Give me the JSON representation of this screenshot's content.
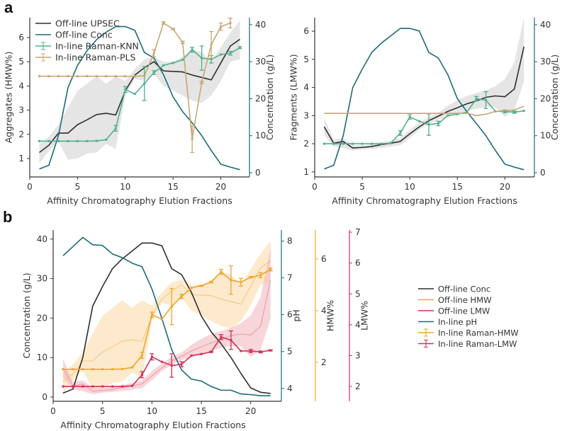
{
  "panel_labels": {
    "a": "a",
    "b": "b"
  },
  "colors": {
    "offline_black": "#2f2f2f",
    "conc_teal": "#1b6c78",
    "knn_green": "#52b08c",
    "pls_tan": "#c9a774",
    "band_gray": "#d4d4d4",
    "hmw_orange": "#f0a52a",
    "band_orange": "#fcd9a2",
    "lmw_red": "#d42f58",
    "band_red": "#f2b2ba"
  },
  "chart_data": [
    {
      "id": "a_left",
      "type": "line",
      "xlabel": "Affinity Chromatography Elution Fractions",
      "ylabel": "Aggregates (HMW%)",
      "y2label": "Concentration (g/L)",
      "xlim": [
        0,
        23
      ],
      "ylim": [
        0.24,
        6.82
      ],
      "y2lim": [
        -1.15,
        41.9
      ],
      "xticks": [
        0,
        5,
        10,
        15,
        20
      ],
      "yticks": [
        1,
        2,
        3,
        4,
        5,
        6
      ],
      "y2ticks": [
        0,
        10,
        20,
        30,
        40
      ],
      "legend": {
        "placement": "top-left",
        "entries": [
          "Off-line UPSEC",
          "Off-line Conc",
          "In-line Raman-KNN",
          "In-line Raman-PLS"
        ]
      },
      "x": [
        1,
        2,
        3,
        4,
        5,
        6,
        7,
        8,
        9,
        10,
        11,
        12,
        13,
        14,
        15,
        16,
        17,
        18,
        19,
        20,
        21,
        22
      ],
      "series": [
        {
          "name": "Off-line UPSEC",
          "axis": "y",
          "color": "offline_black",
          "values": [
            1.25,
            1.55,
            2.05,
            2.05,
            2.4,
            2.6,
            2.82,
            2.87,
            2.8,
            3.8,
            4.45,
            4.75,
            5.0,
            4.62,
            4.6,
            4.58,
            4.45,
            4.35,
            4.25,
            4.95,
            5.65,
            5.93
          ],
          "band_low": [
            0.8,
            1.3,
            1.7,
            0.95,
            1.0,
            1.2,
            1.25,
            1.6,
            1.4,
            3.6,
            4.3,
            4.2,
            4.5,
            4.0,
            3.8,
            3.6,
            3.4,
            3.3,
            3.6,
            4.2,
            5.0,
            5.1
          ],
          "band_high": [
            1.6,
            1.9,
            2.4,
            3.1,
            3.8,
            4.1,
            4.4,
            4.1,
            4.4,
            4.2,
            4.7,
            5.1,
            5.2,
            5.0,
            5.0,
            5.2,
            5.5,
            5.4,
            5.0,
            5.6,
            6.2,
            6.7
          ]
        },
        {
          "name": "Off-line Conc",
          "axis": "y2",
          "color": "conc_teal",
          "values": [
            1,
            2,
            10,
            23,
            29,
            33,
            36,
            38,
            39.5,
            39.5,
            38.5,
            32.5,
            31,
            26.5,
            20.5,
            16.5,
            13.5,
            10,
            6,
            2.3,
            1.5,
            0.8
          ]
        },
        {
          "name": "In-line Raman-KNN",
          "axis": "y",
          "color": "knn_green",
          "values": [
            1.72,
            1.72,
            1.72,
            1.72,
            1.72,
            1.72,
            1.73,
            1.78,
            2.25,
            3.85,
            3.67,
            4.1,
            4.55,
            4.85,
            4.95,
            5.08,
            5.5,
            5.15,
            5.1,
            5.3,
            5.35,
            5.58
          ],
          "errors": [
            0,
            0,
            0,
            0,
            0,
            0,
            0,
            0,
            0.12,
            0.12,
            0,
            0.7,
            0.08,
            0,
            0,
            0,
            0.1,
            0.5,
            0.15,
            0,
            0.08,
            0.04
          ]
        },
        {
          "name": "In-line Raman-PLS",
          "axis": "y",
          "color": "pls_tan",
          "values": [
            4.4,
            4.4,
            4.4,
            4.4,
            4.4,
            4.4,
            4.4,
            4.4,
            4.4,
            4.4,
            4.4,
            4.42,
            5.35,
            6.6,
            6.35,
            5.8,
            1.8,
            4.15,
            5.7,
            6.45,
            6.6,
            null
          ],
          "errors": [
            0,
            0,
            0,
            0,
            0,
            0,
            0,
            0,
            0,
            0,
            0,
            0,
            0.15,
            0.05,
            0.03,
            0.05,
            0.55,
            0.05,
            0.55,
            0.15,
            0.2,
            0
          ]
        }
      ]
    },
    {
      "id": "a_right",
      "type": "line",
      "xlabel": "Affinity Chromatography Elution Fractions",
      "ylabel": "Fragments (LMW%)",
      "y2label": "Concentration (g/L)",
      "xlim": [
        0,
        23.1
      ],
      "ylim": [
        0.82,
        6.48
      ],
      "y2lim": [
        -1.15,
        41.9
      ],
      "xticks": [
        0,
        5,
        10,
        15,
        20
      ],
      "yticks": [
        1,
        2,
        3,
        4,
        5,
        6
      ],
      "y2ticks": [
        0,
        10,
        20,
        30,
        40
      ],
      "x": [
        1,
        2,
        3,
        4,
        5,
        6,
        7,
        8,
        9,
        10,
        11,
        12,
        13,
        14,
        15,
        16,
        17,
        18,
        19,
        20,
        21,
        22
      ],
      "series": [
        {
          "name": "Off-line UPSEC",
          "axis": "y",
          "color": "offline_black",
          "values": [
            2.6,
            2.02,
            2.08,
            1.85,
            1.87,
            1.9,
            1.97,
            2.02,
            2.08,
            2.35,
            2.6,
            2.82,
            2.98,
            3.15,
            3.28,
            3.42,
            3.52,
            3.65,
            3.7,
            3.67,
            3.95,
            5.45
          ],
          "band_low": [
            2.3,
            1.9,
            1.85,
            1.75,
            1.8,
            1.82,
            1.85,
            1.9,
            1.95,
            2.2,
            2.5,
            2.7,
            2.85,
            2.95,
            3.05,
            3.15,
            3.25,
            3.3,
            3.3,
            2.95,
            3.2,
            4.2
          ],
          "band_high": [
            2.9,
            2.15,
            2.2,
            1.95,
            1.95,
            1.98,
            2.05,
            2.12,
            2.2,
            2.5,
            2.75,
            2.95,
            3.1,
            3.35,
            3.55,
            3.7,
            3.8,
            3.9,
            4.05,
            4.3,
            4.9,
            6.5
          ]
        },
        {
          "name": "Off-line Conc",
          "axis": "y2",
          "color": "conc_teal",
          "values": [
            1,
            2,
            10,
            23,
            28,
            32.5,
            35,
            37,
            39,
            39,
            38.3,
            32.5,
            31,
            26.5,
            20,
            16.5,
            13.3,
            10,
            6,
            2.3,
            1.5,
            0.8
          ]
        },
        {
          "name": "In-line Raman-KNN",
          "axis": "y",
          "color": "knn_green",
          "values": [
            2.0,
            2.0,
            2.0,
            2.0,
            2.0,
            2.0,
            2.0,
            2.02,
            2.38,
            2.95,
            2.8,
            2.68,
            2.72,
            3.0,
            3.05,
            3.12,
            3.6,
            3.55,
            3.15,
            3.15,
            3.12,
            3.17
          ],
          "errors": [
            0,
            0,
            0,
            0,
            0,
            0,
            0,
            0,
            0.08,
            0.08,
            0,
            0.38,
            0.08,
            0,
            0,
            0,
            0.08,
            0.3,
            0,
            0.05,
            0.04,
            0
          ]
        },
        {
          "name": "In-line Raman-PLS",
          "axis": "y",
          "color": "pls_tan",
          "values": [
            3.08,
            3.08,
            3.08,
            3.08,
            3.08,
            3.08,
            3.08,
            3.08,
            3.08,
            3.08,
            3.08,
            3.08,
            3.08,
            3.08,
            3.08,
            3.08,
            3.0,
            3.05,
            3.15,
            3.18,
            3.2,
            3.33
          ]
        }
      ]
    },
    {
      "id": "b",
      "type": "line",
      "xlabel": "Affinity Chromatography Elution Fractions",
      "ylabel": "Concentration (g/L)",
      "y2label": "pH",
      "y3label": "HMW%",
      "y4label": "LMW%",
      "xlim": [
        0,
        23.1
      ],
      "ylim": [
        -1.08,
        42.3
      ],
      "y2lim": [
        3.65,
        8.3
      ],
      "y3lim": [
        0.49,
        7.12
      ],
      "y4lim": [
        1.52,
        7.07
      ],
      "xticks": [
        0,
        5,
        10,
        15,
        20
      ],
      "yticks": [
        0,
        10,
        20,
        30,
        40
      ],
      "y2ticks": [
        4,
        5,
        6,
        7,
        8
      ],
      "y3ticks": [
        2,
        4,
        6
      ],
      "y4ticks": [
        2,
        3,
        4,
        5,
        6,
        7
      ],
      "legend": {
        "placement": "right",
        "entries": [
          "Off-line Conc",
          "Off-line HMW",
          "Off-line LMW",
          "In-line pH",
          "In-line Raman-HMW",
          "In-line Raman-LMW"
        ]
      },
      "x": [
        1,
        2,
        3,
        4,
        5,
        6,
        7,
        8,
        9,
        10,
        11,
        12,
        13,
        14,
        15,
        16,
        17,
        18,
        19,
        20,
        21,
        22
      ],
      "series": [
        {
          "name": "Off-line HMW",
          "axis": "y3",
          "color": "band_orange",
          "faint": true,
          "values": [
            1.25,
            1.55,
            2.05,
            2.05,
            2.4,
            2.6,
            2.82,
            2.87,
            2.8,
            3.8,
            4.45,
            4.75,
            5.0,
            4.62,
            4.6,
            4.58,
            4.45,
            4.35,
            4.25,
            4.95,
            5.65,
            5.93
          ],
          "band_low": [
            0.8,
            1.3,
            1.7,
            0.95,
            1.0,
            1.2,
            1.25,
            1.6,
            1.4,
            3.6,
            4.3,
            4.2,
            4.5,
            4.0,
            3.8,
            3.6,
            3.4,
            3.3,
            3.6,
            4.2,
            5.0,
            5.1
          ],
          "band_high": [
            1.6,
            1.9,
            2.4,
            3.1,
            3.8,
            4.1,
            4.4,
            4.1,
            4.4,
            4.2,
            4.7,
            5.1,
            5.2,
            5.0,
            5.0,
            5.2,
            5.5,
            5.4,
            5.0,
            5.6,
            6.2,
            6.7
          ]
        },
        {
          "name": "Off-line LMW",
          "axis": "y4",
          "color": "band_red",
          "faint": true,
          "values": [
            2.6,
            2.02,
            2.08,
            1.85,
            1.87,
            1.9,
            1.97,
            2.02,
            2.08,
            2.35,
            2.6,
            2.82,
            2.98,
            3.15,
            3.28,
            3.42,
            3.52,
            3.65,
            3.7,
            3.67,
            3.95,
            5.45
          ],
          "band_low": [
            2.3,
            1.9,
            1.85,
            1.75,
            1.8,
            1.82,
            1.85,
            1.9,
            1.95,
            2.2,
            2.5,
            2.7,
            2.85,
            2.95,
            3.05,
            3.15,
            3.25,
            3.3,
            3.3,
            2.95,
            3.2,
            4.2
          ],
          "band_high": [
            2.9,
            2.15,
            2.2,
            1.95,
            1.95,
            1.98,
            2.05,
            2.12,
            2.2,
            2.5,
            2.75,
            2.95,
            3.1,
            3.35,
            3.55,
            3.7,
            3.8,
            3.9,
            4.05,
            4.3,
            4.9,
            6.5
          ]
        },
        {
          "name": "Off-line Conc",
          "axis": "y",
          "color": "offline_black",
          "values": [
            1,
            2,
            10,
            23,
            28,
            32.5,
            35,
            37,
            39,
            39,
            38.3,
            32.5,
            31,
            26.5,
            20.5,
            16.5,
            13.5,
            10,
            6,
            2.3,
            1.2,
            0.9
          ]
        },
        {
          "name": "In-line pH",
          "axis": "y2",
          "color": "conc_teal",
          "values": [
            7.6,
            7.85,
            8.1,
            7.9,
            7.88,
            7.65,
            7.55,
            7.4,
            7.3,
            6.7,
            5.9,
            5.05,
            4.5,
            4.25,
            4.2,
            4.05,
            3.95,
            3.95,
            3.85,
            3.83,
            3.8,
            3.8
          ]
        },
        {
          "name": "In-line Raman-HMW",
          "axis": "y3",
          "color": "hmw_orange",
          "values": [
            1.73,
            1.73,
            1.73,
            1.73,
            1.73,
            1.73,
            1.74,
            1.8,
            2.27,
            3.84,
            3.67,
            4.16,
            4.55,
            4.88,
            4.96,
            5.1,
            5.5,
            5.18,
            5.1,
            5.29,
            5.37,
            5.59
          ],
          "errors": [
            0,
            0,
            0,
            0,
            0,
            0,
            0,
            0,
            0.12,
            0.1,
            0,
            0.7,
            0.08,
            0,
            0.02,
            0.03,
            0.1,
            0.55,
            0.15,
            0.03,
            0.1,
            0.05
          ]
        },
        {
          "name": "In-line Raman-LMW",
          "axis": "y4",
          "color": "lmw_red",
          "values": [
            2.0,
            2.0,
            2.0,
            2.0,
            2.0,
            2.0,
            2.0,
            2.02,
            2.38,
            2.96,
            2.8,
            2.68,
            2.72,
            3.0,
            3.05,
            3.12,
            3.6,
            3.5,
            3.15,
            3.15,
            3.12,
            3.17
          ],
          "errors": [
            0,
            0,
            0,
            0,
            0,
            0,
            0,
            0,
            0.1,
            0.1,
            0,
            0.38,
            0.08,
            0,
            0,
            0.02,
            0.08,
            0.3,
            0,
            0.05,
            0.03,
            0.02
          ]
        }
      ]
    }
  ]
}
